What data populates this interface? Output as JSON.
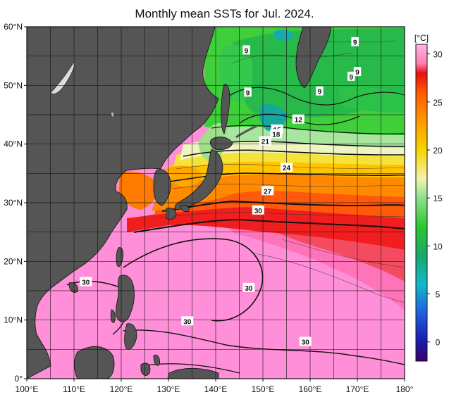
{
  "title": "Monthly mean SSTs for Jul. 2024.",
  "map": {
    "lon_min": 100,
    "lon_max": 180,
    "lat_min": 0,
    "lat_max": 60,
    "lon_ticks": [
      "100°E",
      "110°E",
      "120°E",
      "130°E",
      "140°E",
      "150°E",
      "160°E",
      "170°E",
      "180°"
    ],
    "lat_ticks": [
      "60°N",
      "50°N",
      "40°N",
      "30°N",
      "20°N",
      "10°N",
      "0°"
    ],
    "grid_step_deg": 5,
    "land_color": "#555555",
    "coast_color": "#111111"
  },
  "colorbar": {
    "unit": "[°C]",
    "ticks": [
      "30",
      "25",
      "20",
      "15",
      "10",
      "5",
      "0"
    ],
    "tick_values": [
      30,
      25,
      20,
      15,
      10,
      5,
      0
    ],
    "range": [
      -2,
      31
    ],
    "stops": [
      {
        "v": -2,
        "c": "#3d006b"
      },
      {
        "v": 0,
        "c": "#1a1aa8"
      },
      {
        "v": 3,
        "c": "#1e5fe0"
      },
      {
        "v": 6,
        "c": "#14b9c8"
      },
      {
        "v": 9,
        "c": "#17a86a"
      },
      {
        "v": 12,
        "c": "#2ec62e"
      },
      {
        "v": 15,
        "c": "#8fe08f"
      },
      {
        "v": 17,
        "c": "#f3f3b0"
      },
      {
        "v": 20,
        "c": "#f5d400"
      },
      {
        "v": 23,
        "c": "#ff9a00"
      },
      {
        "v": 26,
        "c": "#ff5a00"
      },
      {
        "v": 28,
        "c": "#e60f14"
      },
      {
        "v": 29,
        "c": "#ff7fb0"
      },
      {
        "v": 31,
        "c": "#ffb5e8"
      }
    ]
  },
  "contour_labels": [
    {
      "text": "9",
      "lon": 146.5,
      "lat": 56.0
    },
    {
      "text": "9",
      "lon": 169.5,
      "lat": 57.4
    },
    {
      "text": "9",
      "lon": 170.0,
      "lat": 52.3
    },
    {
      "text": "9",
      "lon": 168.7,
      "lat": 51.5
    },
    {
      "text": "9",
      "lon": 146.8,
      "lat": 48.8
    },
    {
      "text": "9",
      "lon": 162.0,
      "lat": 49.0
    },
    {
      "text": "12",
      "lon": 157.5,
      "lat": 44.2
    },
    {
      "text": "15",
      "lon": 153.0,
      "lat": 42.5
    },
    {
      "text": "18",
      "lon": 152.8,
      "lat": 41.7
    },
    {
      "text": "21",
      "lon": 150.5,
      "lat": 40.5
    },
    {
      "text": "24",
      "lon": 155.0,
      "lat": 36.0
    },
    {
      "text": "27",
      "lon": 151.0,
      "lat": 32.0
    },
    {
      "text": "30",
      "lon": 149.0,
      "lat": 28.7
    },
    {
      "text": "30",
      "lon": 112.5,
      "lat": 16.5
    },
    {
      "text": "30",
      "lon": 147.0,
      "lat": 15.5
    },
    {
      "text": "30",
      "lon": 134.0,
      "lat": 9.8
    },
    {
      "text": "30",
      "lon": 159.0,
      "lat": 6.3
    }
  ]
}
